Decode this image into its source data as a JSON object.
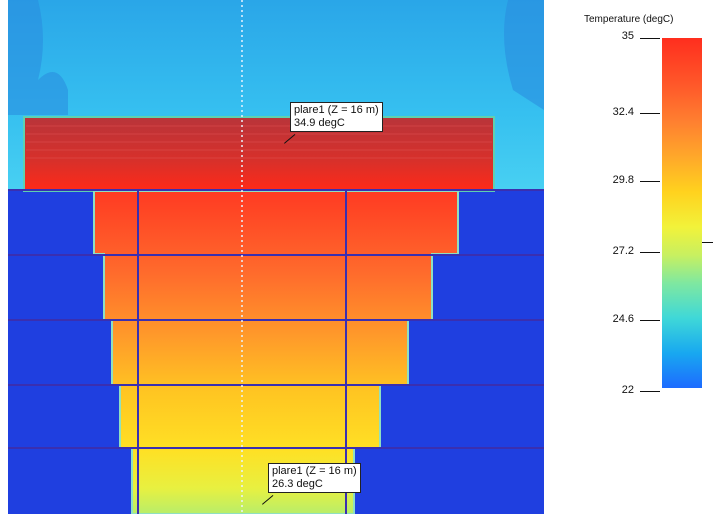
{
  "colors": {
    "background_fluid": "#1f3fe0",
    "ambient_top": "#2fb4ec",
    "hot": "#ff2e1e",
    "mid": "#ff7a30",
    "warm": "#ffd21e",
    "cool": "#c8f060",
    "grid_lines": "#3a2fb0"
  },
  "probes": [
    {
      "title": "plare1 (Z = 16 m)",
      "value": "34.9 degC"
    },
    {
      "title": "plare1 (Z = 16 m)",
      "value": "26.3 degC"
    }
  ],
  "legend": {
    "title": "Temperature (degC)",
    "ticks": [
      "35",
      "32.4",
      "29.8",
      "27.2",
      "24.6",
      "22"
    ],
    "min": 22,
    "max": 35
  }
}
